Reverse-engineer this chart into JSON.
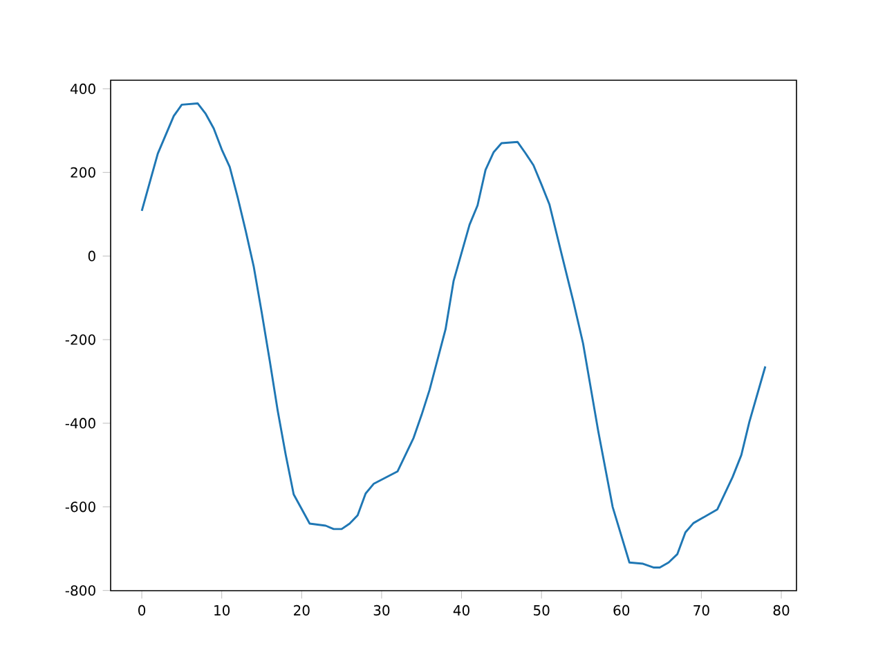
{
  "chart_data": {
    "type": "line",
    "x": [
      0,
      2,
      4,
      5,
      7,
      8,
      9,
      10,
      11,
      12,
      13,
      14,
      15,
      16,
      17,
      18,
      19,
      21,
      23,
      24,
      25,
      26,
      27,
      28,
      29,
      32,
      34,
      35,
      36,
      38,
      39,
      41,
      42,
      43,
      44,
      45,
      47,
      48,
      49,
      50,
      51,
      52.5,
      54,
      55.2,
      57.1,
      58.9,
      61,
      62.7,
      64,
      64.8,
      65.9,
      67,
      68,
      69,
      72,
      73.9,
      75,
      76,
      78
    ],
    "series": [
      {
        "color": "#1f77b4",
        "values": [
          108,
          245,
          335,
          362,
          365,
          340,
          305,
          255,
          213,
          140,
          60,
          -25,
          -135,
          -250,
          -370,
          -475,
          -570,
          -640,
          -645,
          -653,
          -653,
          -640,
          -620,
          -568,
          -545,
          -515,
          -435,
          -380,
          -320,
          -175,
          -60,
          75,
          121,
          206,
          248,
          270,
          273,
          246,
          217,
          171,
          123,
          6,
          -110,
          -209,
          -419,
          -600,
          -733,
          -736,
          -745,
          -745,
          -733,
          -713,
          -661,
          -639,
          -606,
          -529,
          -476,
          -397,
          -264
        ]
      }
    ],
    "xlim": [
      -3.9,
      81.9
    ],
    "ylim": [
      -800.5,
      420.5
    ],
    "xticks": [
      0,
      10,
      20,
      30,
      40,
      50,
      60,
      70,
      80
    ],
    "yticks": [
      -800,
      -600,
      -400,
      -200,
      0,
      200,
      400
    ],
    "grid": false,
    "marker": "none",
    "line_style": "solid"
  }
}
